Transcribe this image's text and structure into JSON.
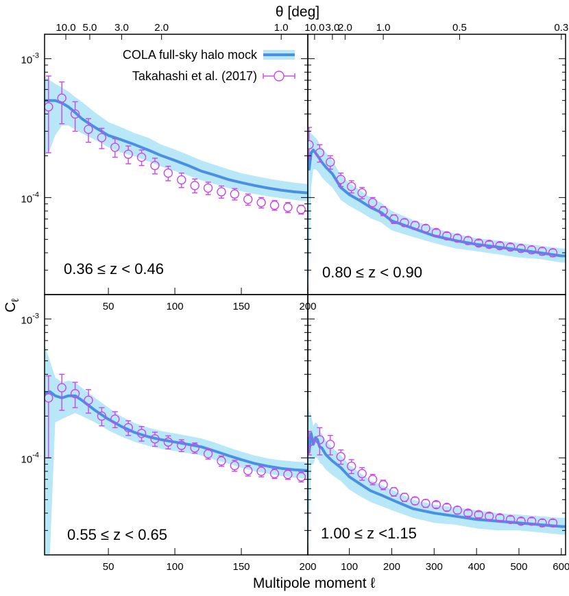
{
  "colors": {
    "model_line": "#4a90e2",
    "model_band": "#b8e8f8",
    "data_marker": "#cc44ee",
    "frame": "#000000"
  },
  "icons": {
    "model": "line-with-band",
    "data": "open-circle-with-errorbar"
  },
  "chart_data": {
    "type": "multi-panel line + scatter with error bars",
    "xlabel": "Multipole moment  ℓ",
    "ylabel_main": "C",
    "ylabel_sub": "ℓ",
    "top_axis_label": "θ [deg]",
    "yscale": "log",
    "ylim": [
      2e-05,
      0.0015
    ],
    "y_ticks": [
      {
        "value": 0.001,
        "mant": "10",
        "exp": "-3"
      },
      {
        "value": 0.0001,
        "mant": "10",
        "exp": "-4"
      }
    ],
    "legend": {
      "location": "upper-right of top-left panel",
      "entries": [
        "COLA full-sky halo mock",
        "Takahashi et al. (2017)"
      ]
    },
    "panels": [
      {
        "label": "0.36 ≤ z < 0.46",
        "xlim": [
          2,
          200
        ],
        "x_ticks": [
          {
            "value": 50,
            "label": "50"
          },
          {
            "value": 100,
            "label": "100"
          },
          {
            "value": 150,
            "label": "150"
          },
          {
            "value": 200,
            "label": "200"
          }
        ],
        "top_ticks": [
          {
            "value": 18,
            "label": "10.0"
          },
          {
            "value": 36,
            "label": "5.0"
          },
          {
            "value": 60,
            "label": "3.0"
          },
          {
            "value": 90,
            "label": "2.0"
          },
          {
            "value": 180,
            "label": "1.0"
          }
        ],
        "model": {
          "name": "COLA full-sky halo mock",
          "x": [
            2,
            6,
            10,
            15,
            20,
            25,
            30,
            40,
            50,
            60,
            70,
            80,
            90,
            100,
            110,
            120,
            130,
            140,
            150,
            160,
            170,
            180,
            190,
            200
          ],
          "y": [
            0.0005,
            0.0005,
            0.0005,
            0.00048,
            0.00045,
            0.00041,
            0.00037,
            0.00032,
            0.00028,
            0.00026,
            0.00024,
            0.00022,
            0.0002,
            0.000185,
            0.00017,
            0.000155,
            0.000145,
            0.000135,
            0.000128,
            0.000122,
            0.000117,
            0.000113,
            0.00011,
            0.000108
          ],
          "y_low": [
            0.0002,
            0.00022,
            0.00028,
            0.00033,
            0.00033,
            0.00031,
            0.00029,
            0.00026,
            0.00023,
            0.00021,
            0.000198,
            0.000182,
            0.000167,
            0.000155,
            0.000144,
            0.000133,
            0.000125,
            0.000117,
            0.000111,
            0.000106,
            0.000102,
            9.9e-05,
            9.6e-05,
            9.4e-05
          ],
          "y_high": [
            0.00075,
            0.0007,
            0.00066,
            0.00062,
            0.00058,
            0.00053,
            0.00049,
            0.00041,
            0.00035,
            0.00032,
            0.00029,
            0.00027,
            0.00024,
            0.000222,
            0.000203,
            0.000185,
            0.000172,
            0.00016,
            0.00015,
            0.000143,
            0.000137,
            0.000132,
            0.000128,
            0.000125
          ]
        },
        "data": {
          "name": "Takahashi et al. (2017)",
          "x": [
            5,
            15,
            25,
            35,
            45,
            55,
            65,
            75,
            85,
            95,
            105,
            115,
            125,
            135,
            145,
            155,
            165,
            175,
            185,
            195
          ],
          "y": [
            0.00045,
            0.00052,
            0.0004,
            0.00031,
            0.00027,
            0.00023,
            0.000205,
            0.000195,
            0.00017,
            0.00015,
            0.000134,
            0.000122,
            0.000117,
            0.00011,
            0.000106,
            9.7e-05,
            9.2e-05,
            8.8e-05,
            8.5e-05,
            8.2e-05
          ],
          "yerr_low": [
            0.00024,
            0.00018,
            0.0001,
            6e-05,
            4.5e-05,
            3.5e-05,
            3e-05,
            2.5e-05,
            2.2e-05,
            1.8e-05,
            1.6e-05,
            1.4e-05,
            1.2e-05,
            1.1e-05,
            1e-05,
            9e-06,
            8e-06,
            7e-06,
            7e-06,
            6e-06
          ],
          "yerr_high": [
            0.0003,
            0.00016,
            9e-05,
            6e-05,
            4.5e-05,
            3.5e-05,
            3e-05,
            2.5e-05,
            2.2e-05,
            1.8e-05,
            1.6e-05,
            1.4e-05,
            1.2e-05,
            1.1e-05,
            1e-05,
            9e-06,
            8e-06,
            7e-06,
            7e-06,
            6e-06
          ]
        }
      },
      {
        "label": "0.80 ≤ z < 0.90",
        "xlim": [
          2,
          610
        ],
        "x_ticks": [],
        "top_ticks": [
          {
            "value": 18,
            "label": "10.0"
          },
          {
            "value": 60,
            "label": "3.0"
          },
          {
            "value": 90,
            "label": "2.0"
          },
          {
            "value": 180,
            "label": "1.0"
          },
          {
            "value": 360,
            "label": "0.5"
          },
          {
            "value": 600,
            "label": "0.3"
          }
        ],
        "model": {
          "name": "COLA full-sky halo mock",
          "x": [
            2,
            5,
            10,
            15,
            20,
            25,
            30,
            35,
            45,
            60,
            80,
            100,
            125,
            150,
            175,
            200,
            250,
            300,
            350,
            400,
            450,
            500,
            550,
            600,
            610
          ],
          "y": [
            0.0002,
            0.00016,
            0.00021,
            0.00022,
            0.00021,
            0.0002,
            0.00019,
            0.00018,
            0.000165,
            0.000148,
            0.000118,
            0.000105,
            9.5e-05,
            8.5e-05,
            7.8e-05,
            6.8e-05,
            6e-05,
            5.3e-05,
            4.9e-05,
            4.6e-05,
            4.4e-05,
            4.2e-05,
            4e-05,
            3.8e-05,
            3.8e-05
          ],
          "y_low": [
            2e-05,
            3e-05,
            0.00012,
            0.00016,
            0.00016,
            0.000155,
            0.000148,
            0.00014,
            0.00013,
            0.000118,
            9.6e-05,
            8.7e-05,
            7.9e-05,
            7.1e-05,
            6.6e-05,
            5.8e-05,
            5.2e-05,
            4.7e-05,
            4.3e-05,
            4.1e-05,
            3.9e-05,
            3.7e-05,
            3.6e-05,
            3.4e-05,
            3.4e-05
          ],
          "y_high": [
            0.00032,
            0.0003,
            0.00029,
            0.00028,
            0.00027,
            0.00026,
            0.00024,
            0.00023,
            0.00021,
            0.000185,
            0.000145,
            0.000127,
            0.000113,
            0.0001,
            9.2e-05,
            8e-05,
            6.9e-05,
            6e-05,
            5.5e-05,
            5.1e-05,
            4.9e-05,
            4.7e-05,
            4.5e-05,
            4.3e-05,
            4.3e-05
          ]
        },
        "data": {
          "name": "Takahashi et al. (2017)",
          "x": [
            5,
            30,
            55,
            80,
            105,
            130,
            155,
            180,
            205,
            230,
            255,
            280,
            305,
            330,
            355,
            380,
            405,
            430,
            455,
            480,
            505,
            530,
            555,
            580
          ],
          "y": [
            0.00024,
            0.00021,
            0.00018,
            0.000135,
            0.00012,
            0.000108,
            9.2e-05,
            8e-05,
            7e-05,
            6.6e-05,
            6.3e-05,
            6e-05,
            5.6e-05,
            5.3e-05,
            5.1e-05,
            4.9e-05,
            4.7e-05,
            4.6e-05,
            4.5e-05,
            4.4e-05,
            4.3e-05,
            4.2e-05,
            4.1e-05,
            4e-05
          ],
          "yerr_low": [
            5e-05,
            3e-05,
            2e-05,
            1.5e-05,
            1.2e-05,
            1e-05,
            8e-06,
            6e-06,
            5e-06,
            4e-06,
            4e-06,
            3.5e-06,
            3e-06,
            3e-06,
            3e-06,
            3e-06,
            2.5e-06,
            2.5e-06,
            2.5e-06,
            2.5e-06,
            2.5e-06,
            2.5e-06,
            2.5e-06,
            2.5e-06
          ],
          "yerr_high": [
            8e-05,
            3e-05,
            2e-05,
            1.5e-05,
            1.2e-05,
            1e-05,
            8e-06,
            6e-06,
            5e-06,
            4e-06,
            4e-06,
            3.5e-06,
            3e-06,
            3e-06,
            3e-06,
            3e-06,
            2.5e-06,
            2.5e-06,
            2.5e-06,
            2.5e-06,
            2.5e-06,
            2.5e-06,
            2.5e-06,
            2.5e-06
          ]
        }
      },
      {
        "label": "0.55 ≤ z < 0.65",
        "xlim": [
          2,
          200
        ],
        "x_ticks": [
          {
            "value": 50,
            "label": "50"
          },
          {
            "value": 100,
            "label": "100"
          },
          {
            "value": 150,
            "label": "150"
          },
          {
            "value": 200,
            "label": "200"
          }
        ],
        "top_ticks": [],
        "model": {
          "name": "COLA full-sky halo mock",
          "x": [
            2,
            6,
            10,
            15,
            20,
            25,
            30,
            40,
            50,
            60,
            70,
            80,
            90,
            100,
            110,
            120,
            130,
            140,
            150,
            160,
            170,
            180,
            190,
            200
          ],
          "y": [
            0.00029,
            0.0003,
            0.00028,
            0.00027,
            0.00028,
            0.00028,
            0.00026,
            0.00022,
            0.00019,
            0.000168,
            0.000152,
            0.000142,
            0.000135,
            0.00013,
            0.000125,
            0.00012,
            0.000112,
            0.000104,
            9.7e-05,
            9.1e-05,
            8.7e-05,
            8.4e-05,
            8.2e-05,
            8.1e-05
          ],
          "y_low": [
            2e-05,
            2e-05,
            0.00018,
            0.00019,
            0.0002,
            0.00021,
            0.0002,
            0.00018,
            0.000158,
            0.000142,
            0.00013,
            0.000122,
            0.000116,
            0.000112,
            0.000108,
            0.000104,
            9.7e-05,
            9.1e-05,
            8.5e-05,
            8e-05,
            7.7e-05,
            7.4e-05,
            7.2e-05,
            7.1e-05
          ],
          "y_high": [
            0.00065,
            0.0005,
            0.00038,
            0.00035,
            0.00036,
            0.00035,
            0.00032,
            0.00027,
            0.00023,
            0.000198,
            0.000178,
            0.000165,
            0.000156,
            0.00015,
            0.000144,
            0.000138,
            0.000129,
            0.000119,
            0.000111,
            0.000104,
            9.9e-05,
            9.6e-05,
            9.4e-05,
            9.3e-05
          ]
        },
        "data": {
          "name": "Takahashi et al. (2017)",
          "x": [
            5,
            15,
            25,
            35,
            45,
            55,
            65,
            75,
            85,
            95,
            105,
            115,
            125,
            135,
            145,
            155,
            165,
            175,
            185,
            195
          ],
          "y": [
            0.00027,
            0.00032,
            0.00029,
            0.00026,
            0.0002,
            0.00019,
            0.000165,
            0.00015,
            0.000137,
            0.00013,
            0.000123,
            0.000118,
            0.000107,
            9.5e-05,
            8.8e-05,
            8.1e-05,
            8e-05,
            7.7e-05,
            7.6e-05,
            7.3e-05
          ],
          "yerr_low": [
            0.00017,
            0.0001,
            6e-05,
            5e-05,
            3e-05,
            2.5e-05,
            2e-05,
            1.8e-05,
            1.6e-05,
            1.4e-05,
            1.2e-05,
            1e-05,
            9e-06,
            8e-06,
            8e-06,
            7e-06,
            7e-06,
            6e-06,
            6e-06,
            6e-06
          ],
          "yerr_high": [
            0.00012,
            8e-05,
            6e-05,
            5e-05,
            3e-05,
            2.5e-05,
            2e-05,
            1.8e-05,
            1.6e-05,
            1.4e-05,
            1.2e-05,
            1e-05,
            9e-06,
            8e-06,
            8e-06,
            7e-06,
            7e-06,
            6e-06,
            6e-06,
            6e-06
          ]
        }
      },
      {
        "label": "1.00 ≤ z <1.15",
        "xlim": [
          2,
          610
        ],
        "x_ticks": [
          {
            "value": 100,
            "label": "100"
          },
          {
            "value": 200,
            "label": "200"
          },
          {
            "value": 300,
            "label": "300"
          },
          {
            "value": 400,
            "label": "400"
          },
          {
            "value": 500,
            "label": "500"
          },
          {
            "value": 600,
            "label": "600"
          }
        ],
        "top_ticks": [],
        "model": {
          "name": "COLA full-sky halo mock",
          "x": [
            2,
            5,
            10,
            15,
            20,
            25,
            30,
            35,
            45,
            60,
            80,
            100,
            125,
            150,
            175,
            200,
            250,
            300,
            350,
            400,
            450,
            500,
            550,
            600,
            610
          ],
          "y": [
            0.00014,
            0.00011,
            0.00015,
            0.000125,
            0.00014,
            0.000135,
            0.00012,
            0.000118,
            0.000105,
            9.5e-05,
            8.5e-05,
            7.3e-05,
            6.5e-05,
            5.8e-05,
            5.4e-05,
            5e-05,
            4.3e-05,
            4e-05,
            3.8e-05,
            3.6e-05,
            3.5e-05,
            3.4e-05,
            3.3e-05,
            3.2e-05,
            3.2e-05
          ],
          "y_low": [
            2e-05,
            3e-05,
            9e-05,
            9e-05,
            0.0001,
            0.0001,
            9.2e-05,
            9e-05,
            8.2e-05,
            7.5e-05,
            6.8e-05,
            5.9e-05,
            5.3e-05,
            4.8e-05,
            4.5e-05,
            4.2e-05,
            3.7e-05,
            3.4e-05,
            3.3e-05,
            3.1e-05,
            3e-05,
            3e-05,
            2.9e-05,
            2.8e-05,
            2.8e-05
          ],
          "y_high": [
            0.0003,
            0.00022,
            0.0002,
            0.00017,
            0.00018,
            0.000175,
            0.000155,
            0.00015,
            0.000132,
            0.000118,
            0.000104,
            8.9e-05,
            7.8e-05,
            6.9e-05,
            6.4e-05,
            5.9e-05,
            5e-05,
            4.6e-05,
            4.4e-05,
            4.2e-05,
            4e-05,
            3.9e-05,
            3.8e-05,
            3.7e-05,
            3.7e-05
          ]
        },
        "data": {
          "name": "Takahashi et al. (2017)",
          "x": [
            5,
            30,
            55,
            80,
            105,
            130,
            155,
            180,
            205,
            230,
            255,
            280,
            305,
            330,
            355,
            380,
            405,
            430,
            455,
            480,
            505,
            530,
            555,
            580
          ],
          "y": [
            0.00013,
            0.000135,
            0.000125,
            0.000102,
            8.7e-05,
            7.7e-05,
            7e-05,
            6.4e-05,
            5.7e-05,
            5.2e-05,
            4.9e-05,
            4.7e-05,
            4.6e-05,
            4.4e-05,
            4.2e-05,
            4e-05,
            3.9e-05,
            3.8e-05,
            3.7e-05,
            3.6e-05,
            3.5e-05,
            3.5e-05,
            3.4e-05,
            3.4e-05
          ],
          "yerr_low": [
            2.5e-05,
            3e-05,
            2e-05,
            1.2e-05,
            1e-05,
            8e-06,
            6e-06,
            5e-06,
            4e-06,
            3.5e-06,
            3e-06,
            3e-06,
            2.5e-06,
            2.5e-06,
            2.5e-06,
            2e-06,
            2e-06,
            2e-06,
            2e-06,
            2e-06,
            2e-06,
            2e-06,
            2e-06,
            2e-06
          ],
          "yerr_high": [
            2.5e-05,
            3e-05,
            2e-05,
            1.2e-05,
            1e-05,
            8e-06,
            6e-06,
            5e-06,
            4e-06,
            3.5e-06,
            3e-06,
            3e-06,
            2.5e-06,
            2.5e-06,
            2.5e-06,
            2e-06,
            2e-06,
            2e-06,
            2e-06,
            2e-06,
            2e-06,
            2e-06,
            2e-06,
            2e-06
          ]
        }
      }
    ]
  }
}
